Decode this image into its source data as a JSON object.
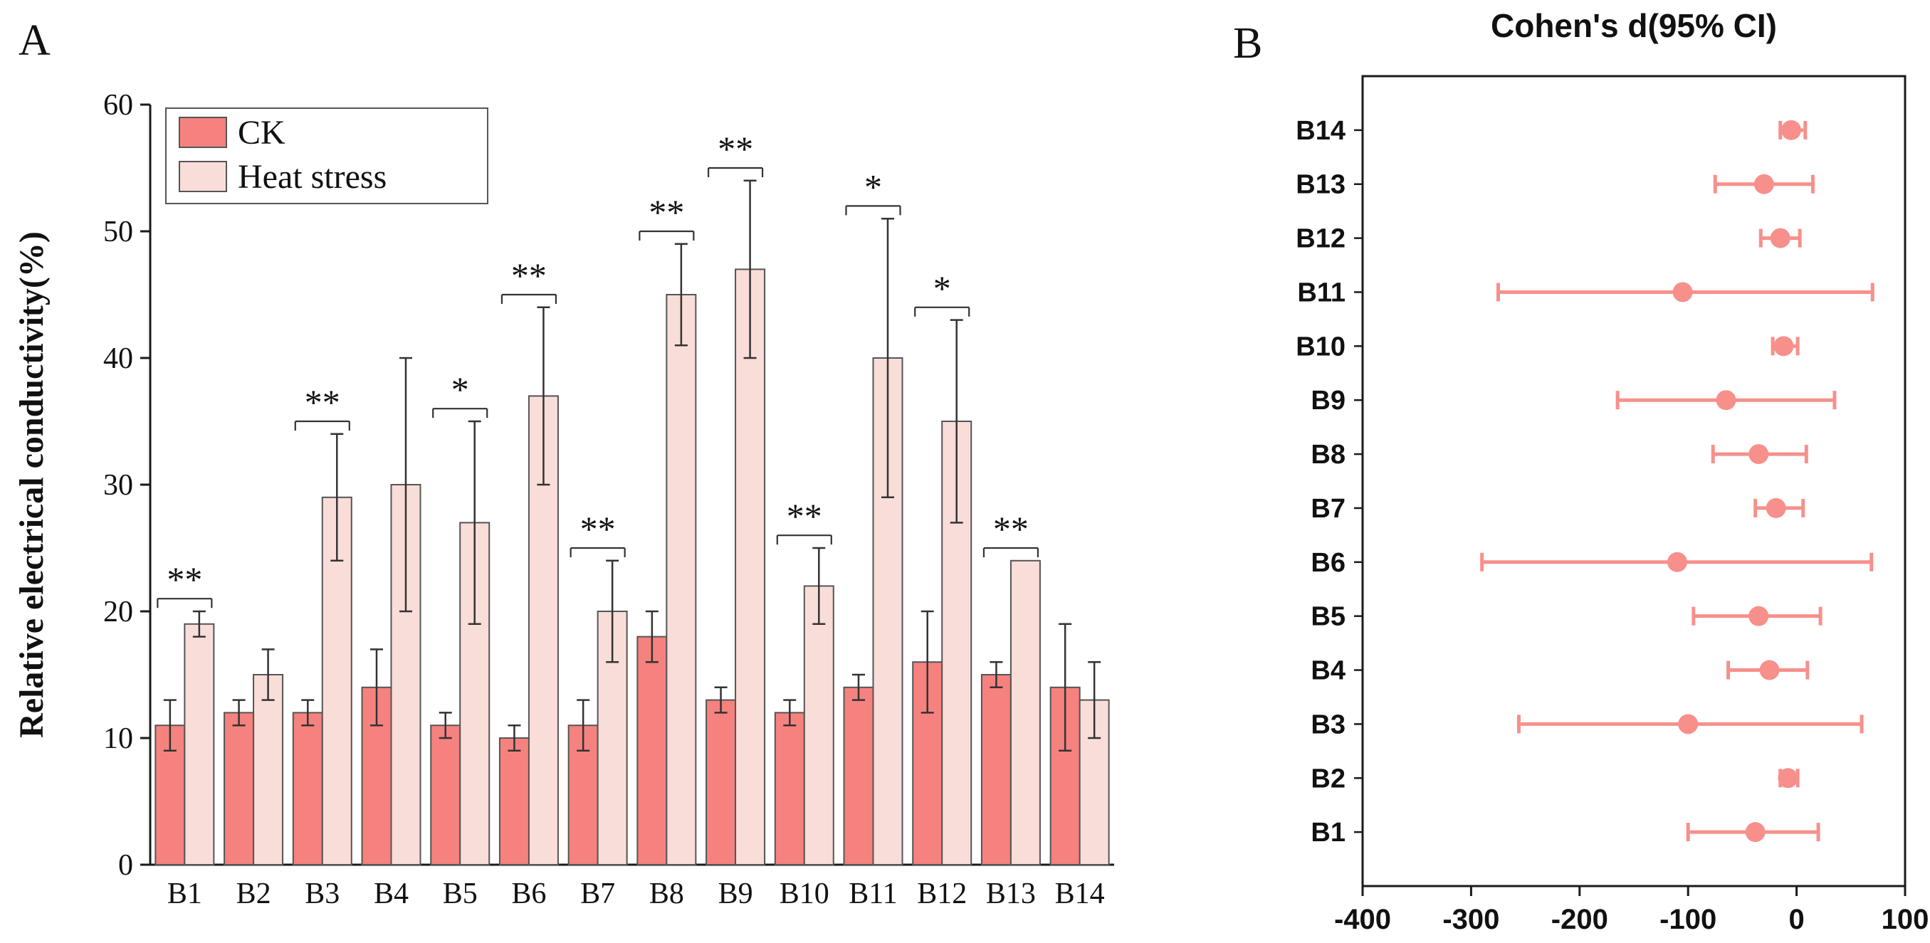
{
  "figure": {
    "background": "#ffffff"
  },
  "panelA": {
    "label": "A",
    "chart_data": {
      "type": "bar",
      "ylabel": "Relative electrical conductivity(%)",
      "ylim": [
        0,
        60
      ],
      "yticks": [
        0,
        10,
        20,
        30,
        40,
        50,
        60
      ],
      "categories": [
        "B1",
        "B2",
        "B3",
        "B4",
        "B5",
        "B6",
        "B7",
        "B8",
        "B9",
        "B10",
        "B11",
        "B12",
        "B13",
        "B14"
      ],
      "series": [
        {
          "name": "CK",
          "color": "#f5827e",
          "values": [
            11,
            12,
            12,
            14,
            11,
            10,
            11,
            18,
            13,
            12,
            14,
            16,
            15,
            14
          ],
          "errors": [
            2,
            1,
            1,
            3,
            1,
            1,
            2,
            2,
            1,
            1,
            1,
            4,
            1,
            5
          ]
        },
        {
          "name": "Heat stress",
          "color": "#f9ddd8",
          "values": [
            19,
            15,
            29,
            30,
            27,
            37,
            20,
            45,
            47,
            22,
            40,
            35,
            24,
            13
          ],
          "errors": [
            1,
            2,
            5,
            10,
            8,
            7,
            4,
            4,
            7,
            3,
            11,
            8,
            0,
            3
          ]
        }
      ],
      "significance": [
        "**",
        "",
        "**",
        "",
        "*",
        "**",
        "**",
        "**",
        "**",
        "**",
        "*",
        "*",
        "**",
        ""
      ],
      "bar_edge_color": "#555555",
      "error_bar_color": "#333333",
      "axis_color": "#1a1a1a",
      "legend_position": "top-left",
      "grid": false
    }
  },
  "panelB": {
    "label": "B",
    "chart_data": {
      "type": "scatter",
      "title": "Cohen's d(95% CI)",
      "xlim": [
        -400,
        100
      ],
      "xticks": [
        -400,
        -300,
        -200,
        -100,
        0,
        100
      ],
      "color": "#f7908b",
      "axis_color": "#1a1a1a",
      "rows": [
        {
          "label": "B14",
          "estimate": -5,
          "ci_low": -15,
          "ci_high": 8
        },
        {
          "label": "B13",
          "estimate": -30,
          "ci_low": -75,
          "ci_high": 15
        },
        {
          "label": "B12",
          "estimate": -15,
          "ci_low": -33,
          "ci_high": 3
        },
        {
          "label": "B11",
          "estimate": -105,
          "ci_low": -275,
          "ci_high": 70
        },
        {
          "label": "B10",
          "estimate": -12,
          "ci_low": -22,
          "ci_high": 1
        },
        {
          "label": "B9",
          "estimate": -65,
          "ci_low": -165,
          "ci_high": 35
        },
        {
          "label": "B8",
          "estimate": -35,
          "ci_low": -77,
          "ci_high": 9
        },
        {
          "label": "B7",
          "estimate": -19,
          "ci_low": -38,
          "ci_high": 6
        },
        {
          "label": "B6",
          "estimate": -110,
          "ci_low": -290,
          "ci_high": 69
        },
        {
          "label": "B5",
          "estimate": -35,
          "ci_low": -95,
          "ci_high": 22
        },
        {
          "label": "B4",
          "estimate": -25,
          "ci_low": -63,
          "ci_high": 10
        },
        {
          "label": "B3",
          "estimate": -100,
          "ci_low": -256,
          "ci_high": 60
        },
        {
          "label": "B2",
          "estimate": -8,
          "ci_low": -15,
          "ci_high": 1
        },
        {
          "label": "B1",
          "estimate": -38,
          "ci_low": -100,
          "ci_high": 20
        }
      ]
    }
  }
}
